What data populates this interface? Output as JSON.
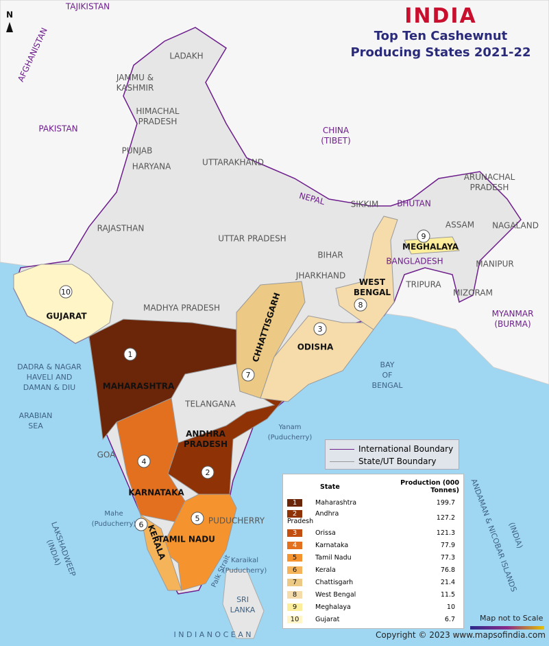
{
  "header": {
    "country": "INDIA",
    "title": "Top Ten Cashewnut Producing States 2021-22"
  },
  "labels": {
    "north": "N",
    "tajikistan": "TAJIKISTAN",
    "afghanistan": "AFGHANISTAN",
    "pakistan": "PAKISTAN",
    "china": [
      "CHINA",
      "(TIBET)"
    ],
    "nepal": "NEPAL",
    "bhutan": "BHUTAN",
    "bangladesh": "BANGLADESH",
    "myanmar": [
      "MYANMAR",
      "(BURMA)"
    ],
    "ladakh": "LADAKH",
    "jammu_kashmir": [
      "JAMMU &",
      "KASHMIR"
    ],
    "himachal": [
      "HIMACHAL",
      "PRADESH"
    ],
    "punjab": "PUNJAB",
    "haryana": "HARYANA",
    "uttarakhand": "UTTARAKHAND",
    "rajasthan": "RAJASTHAN",
    "uttar_pradesh": "UTTAR PRADESH",
    "bihar": "BIHAR",
    "jharkhand": "JHARKHAND",
    "madhya_pradesh": "MADHYA PRADESH",
    "sikkim": "SIKKIM",
    "arunachal": [
      "ARUNACHAL",
      "PRADESH"
    ],
    "assam": "ASSAM",
    "nagaland": "NAGALAND",
    "manipur": "MANIPUR",
    "tripura": "TRIPURA",
    "mizoram": "MIZORAM",
    "telangana": "TELANGANA",
    "goa": "GOA",
    "puducherry": "PUDUCHERRY",
    "gujarat": "GUJARAT",
    "maharashtra": "MAHARASHTRA",
    "chhattisgarh": "CHHATTISGARH",
    "odisha": "ODISHA",
    "west_bengal": [
      "WEST",
      "BENGAL"
    ],
    "meghalaya": "MEGHALAYA",
    "andhra": [
      "ANDHRA",
      "PRADESH"
    ],
    "karnataka": "KARNATAKA",
    "tamil_nadu": "TAMIL NADU",
    "kerala": "KERALA",
    "arabian_sea": [
      "ARABIAN",
      "SEA"
    ],
    "bay_of_bengal": [
      "BAY",
      "OF",
      "BENGAL"
    ],
    "indian_ocean": "I N D I A N      O C E A N",
    "lakshadweep": [
      "LAKSHADWEEP",
      "(INDIA)"
    ],
    "andaman": "ANDAMAN & NICOBAR ISLANDS",
    "andaman_india": "(INDIA)",
    "sri_lanka": [
      "SRI",
      "LANKA"
    ],
    "palk_strait": "Palk Strait",
    "yanam": [
      "Yanam",
      "(Puducherry)"
    ],
    "mahe": [
      "Mahe",
      "(Puducherry)"
    ],
    "karaikal": [
      "Karaikal",
      "(Puducherry)"
    ],
    "dadra": [
      "DADRA & NAGAR",
      "HAVELI AND",
      "DAMAN & DIU"
    ]
  },
  "legend": {
    "international": "International Boundary",
    "state": "State/UT Boundary"
  },
  "table": {
    "headers": [
      "State",
      "Production (000 Tonnes)"
    ],
    "rows": [
      {
        "rank": 1,
        "state": "Maharashtra",
        "production": 199.7,
        "color": "#6b2508"
      },
      {
        "rank": 2,
        "state": "Andhra Pradesh",
        "production": 127.2,
        "color": "#8f3206"
      },
      {
        "rank": 3,
        "state": "Orissa",
        "production": 121.3,
        "color": "#c24e10"
      },
      {
        "rank": 4,
        "state": "Karnataka",
        "production": 77.9,
        "color": "#e2701f"
      },
      {
        "rank": 5,
        "state": "Tamil Nadu",
        "production": 77.3,
        "color": "#f5942e"
      },
      {
        "rank": 6,
        "state": "Kerala",
        "production": 76.8,
        "color": "#f6b45a"
      },
      {
        "rank": 7,
        "state": "Chattisgarh",
        "production": 21.4,
        "color": "#ecc985"
      },
      {
        "rank": 8,
        "state": "West Bengal",
        "production": 11.5,
        "color": "#f5dcaa"
      },
      {
        "rank": 9,
        "state": "Meghalaya",
        "production": 10,
        "color": "#fcee9a"
      },
      {
        "rank": 10,
        "state": "Gujarat",
        "production": 6.7,
        "color": "#fff5c6"
      }
    ]
  },
  "footer": {
    "scale": "Map not to Scale",
    "copyright": "Copyright © 2023 www.mapsofindia.com"
  }
}
